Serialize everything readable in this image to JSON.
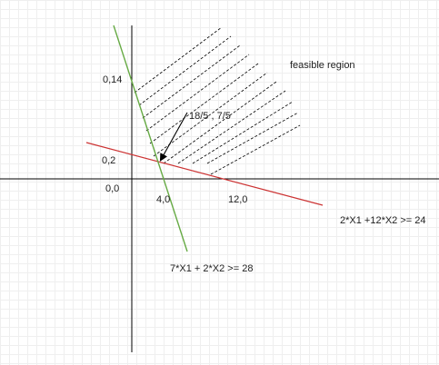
{
  "diagram": {
    "labels": {
      "feasible_region": "feasible region",
      "y_intercept_1": "0,14",
      "intersection": "18/5 , 7/5",
      "y_intercept_2": "0,2",
      "origin": "0,0",
      "x_intercept_1": "4,0",
      "x_intercept_2": "12,0",
      "constraint_red": "2*X1 +12*X2 >= 24",
      "constraint_green": "7*X1 + 2*X2  >= 28"
    },
    "colors": {
      "axis": "#000000",
      "red_line": "#cc3333",
      "green_line": "#66aa44",
      "hatch": "#000000",
      "arrow": "#000000"
    }
  }
}
